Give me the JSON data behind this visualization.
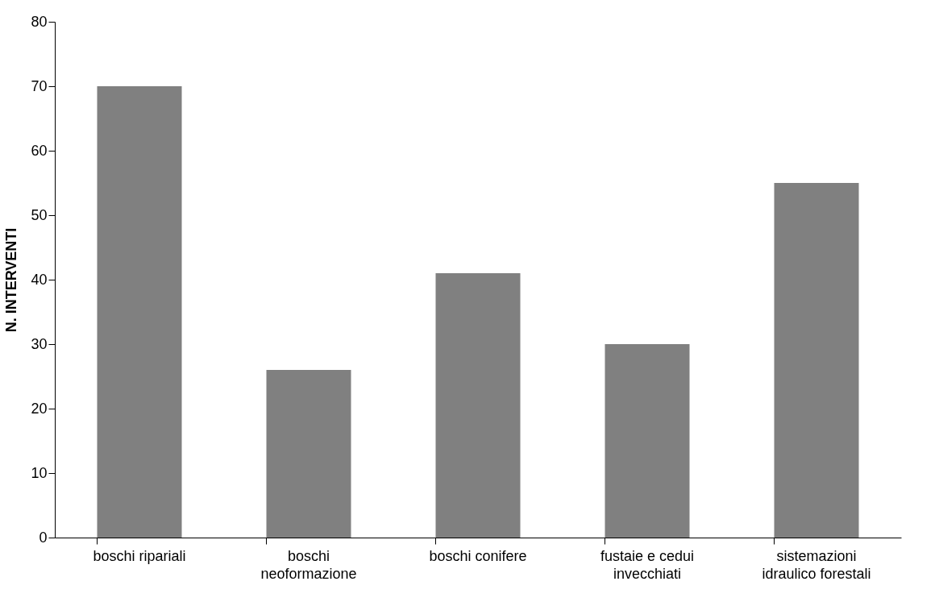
{
  "chart_data": {
    "type": "bar",
    "ylabel": "N. INTERVENTI",
    "categories": [
      "boschi ripariali",
      "boschi neoformazione",
      "boschi conifere",
      "fustaie e cedui invecchiati",
      "sistemazioni idraulico forestali"
    ],
    "values": [
      70,
      26,
      41,
      30,
      55
    ],
    "color": "#808080",
    "ylim": [
      0,
      80
    ],
    "yticks": [
      0,
      10,
      20,
      30,
      40,
      50,
      60,
      70,
      80
    ],
    "grid": false
  }
}
